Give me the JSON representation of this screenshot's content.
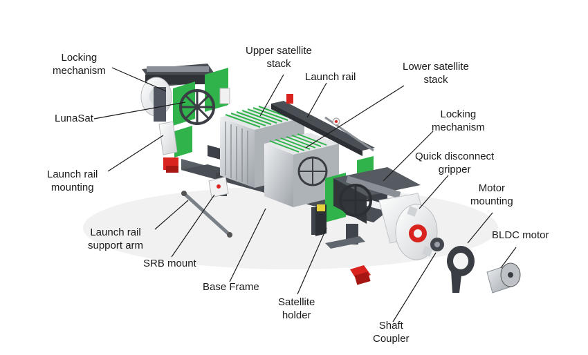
{
  "labels": {
    "locking_mechanism_left": [
      "Locking",
      "mechanism"
    ],
    "upper_satellite_stack": [
      "Upper satellite",
      "stack"
    ],
    "launch_rail": [
      "Launch rail"
    ],
    "lower_satellite_stack": [
      "Lower satellite",
      "stack"
    ],
    "lunasat": [
      "LunaSat"
    ],
    "locking_mechanism_right": [
      "Locking",
      "mechanism"
    ],
    "quick_disconnect_gripper": [
      "Quick disconnect",
      "gripper"
    ],
    "launch_rail_mounting": [
      "Launch rail",
      "mounting"
    ],
    "motor_mounting": [
      "Motor",
      "mounting"
    ],
    "bldc_motor": [
      "BLDC motor"
    ],
    "launch_rail_support_arm": [
      "Launch rail",
      "support arm"
    ],
    "srb_mount": [
      "SRB mount"
    ],
    "base_frame": [
      "Base Frame"
    ],
    "satellite_holder": [
      "Satellite",
      "holder"
    ],
    "shaft_coupler": [
      "Shaft",
      "Coupler"
    ]
  },
  "colors": {
    "frame_dark": "#3a3e44",
    "frame_mid": "#6d737a",
    "panel_green": "#2fb34a",
    "satellite_grey": "#c9cdd1",
    "accent_red": "#d8231f",
    "housing_white": "#f1f1f1"
  }
}
